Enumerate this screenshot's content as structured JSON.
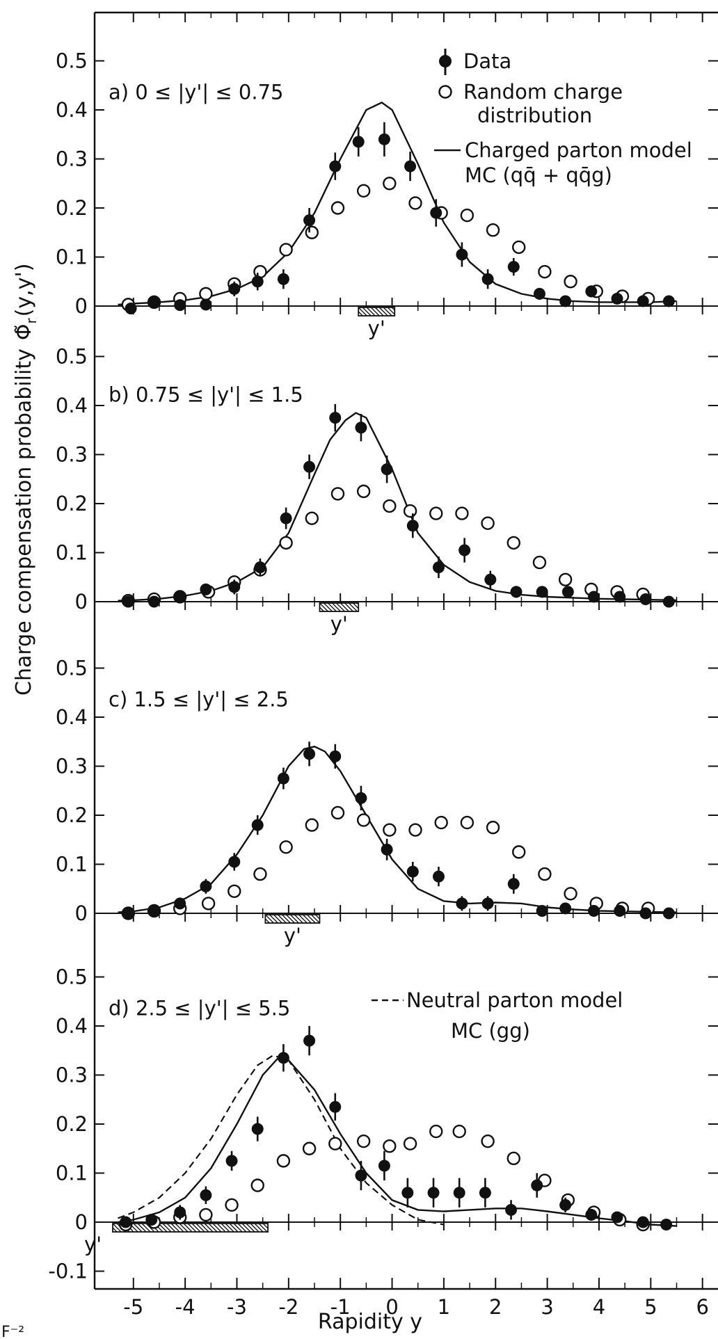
{
  "chart_data": {
    "type": "scatter",
    "xlabel": "Rapidity  y",
    "ylabel": "Charge compensation probability",
    "ylabel_symbol": "Φ̃",
    "ylabel_sub": "r",
    "ylabel_args": "(y,y')",
    "xlim": [
      -5.75,
      6.3
    ],
    "x_ticks": [
      -5,
      -4,
      -3,
      -2,
      -1,
      0,
      1,
      2,
      3,
      4,
      5,
      6
    ],
    "y_ticks": [
      "0",
      "0.1",
      "0.2",
      "0.3",
      "0.4",
      "0.5"
    ],
    "y_ticks_extra": [
      "-0.1"
    ],
    "yprime_marker": "y'",
    "fig_caption": "F⁻²",
    "legend": {
      "data": "Data",
      "random_1": "Random charge",
      "random_2": "distribution",
      "charged_1": "Charged parton model",
      "charged_2": "MC (qq̄ + qq̄g)",
      "neutral_1": "Neutral parton model",
      "neutral_2": "MC (gg)"
    },
    "panels": [
      {
        "label": "a)  0 ≤ |y'| ≤ 0.75",
        "ylim": [
          0,
          0.57
        ],
        "yprime_range": [
          -0.65,
          0.05
        ],
        "data": {
          "x": [
            -5.05,
            -4.6,
            -4.1,
            -3.6,
            -3.05,
            -2.6,
            -2.1,
            -1.6,
            -1.1,
            -0.65,
            -0.15,
            0.35,
            0.85,
            1.35,
            1.85,
            2.35,
            2.85,
            3.35,
            3.85,
            4.35,
            4.85,
            5.35
          ],
          "y": [
            -0.005,
            0.007,
            0.002,
            0.003,
            0.035,
            0.05,
            0.055,
            0.175,
            0.285,
            0.335,
            0.34,
            0.285,
            0.19,
            0.105,
            0.055,
            0.08,
            0.025,
            0.01,
            0.03,
            0.015,
            0.01,
            0.01
          ],
          "err": [
            0.008,
            0.008,
            0.008,
            0.008,
            0.015,
            0.018,
            0.02,
            0.025,
            0.028,
            0.03,
            0.035,
            0.03,
            0.028,
            0.025,
            0.02,
            0.018,
            0.012,
            0.01,
            0.012,
            0.01,
            0.008,
            0.008
          ]
        },
        "random": {
          "x": [
            -5.1,
            -4.6,
            -4.1,
            -3.6,
            -3.05,
            -2.55,
            -2.05,
            -1.55,
            -1.05,
            -0.55,
            -0.05,
            0.45,
            0.95,
            1.45,
            1.95,
            2.45,
            2.95,
            3.45,
            3.95,
            4.45,
            4.95
          ],
          "y": [
            0.003,
            0.008,
            0.015,
            0.025,
            0.045,
            0.07,
            0.115,
            0.15,
            0.2,
            0.235,
            0.25,
            0.21,
            0.19,
            0.185,
            0.155,
            0.12,
            0.07,
            0.05,
            0.03,
            0.02,
            0.015
          ]
        },
        "model": {
          "x": [
            -5.3,
            -5,
            -4.5,
            -4,
            -3.5,
            -3,
            -2.5,
            -2,
            -1.5,
            -1,
            -0.5,
            -0.2,
            0,
            0.5,
            1,
            1.5,
            2,
            2.5,
            3,
            3.5,
            4,
            4.5,
            5,
            5.5
          ],
          "y": [
            0.003,
            0.005,
            0.008,
            0.012,
            0.02,
            0.035,
            0.06,
            0.11,
            0.19,
            0.3,
            0.4,
            0.415,
            0.4,
            0.29,
            0.17,
            0.09,
            0.045,
            0.025,
            0.015,
            0.01,
            0.008,
            0.008,
            0.008,
            0.01
          ]
        }
      },
      {
        "label": "b)  0.75 ≤ |y'| ≤ 1.5",
        "ylim": [
          0,
          0.57
        ],
        "yprime_range": [
          -1.4,
          -0.65
        ],
        "data": {
          "x": [
            -5.1,
            -4.6,
            -4.1,
            -3.6,
            -3.05,
            -2.55,
            -2.05,
            -1.6,
            -1.1,
            -0.6,
            -0.1,
            0.4,
            0.9,
            1.4,
            1.9,
            2.4,
            2.9,
            3.4,
            3.9,
            4.4,
            4.9,
            5.35
          ],
          "y": [
            0,
            0,
            0.01,
            0.025,
            0.03,
            0.07,
            0.17,
            0.275,
            0.375,
            0.355,
            0.27,
            0.155,
            0.07,
            0.105,
            0.045,
            0.02,
            0.02,
            0.02,
            0.01,
            0.01,
            0.005,
            0
          ],
          "err": [
            0.008,
            0.008,
            0.01,
            0.012,
            0.015,
            0.018,
            0.022,
            0.025,
            0.028,
            0.028,
            0.028,
            0.025,
            0.022,
            0.025,
            0.018,
            0.012,
            0.01,
            0.01,
            0.008,
            0.008,
            0.008,
            0.008
          ]
        },
        "random": {
          "x": [
            -5.1,
            -4.6,
            -4.1,
            -3.55,
            -3.05,
            -2.55,
            -2.05,
            -1.55,
            -1.05,
            -0.55,
            -0.05,
            0.35,
            0.85,
            1.35,
            1.85,
            2.35,
            2.85,
            3.35,
            3.85,
            4.35,
            4.85
          ],
          "y": [
            0.002,
            0.005,
            0.01,
            0.02,
            0.04,
            0.065,
            0.12,
            0.17,
            0.22,
            0.225,
            0.195,
            0.185,
            0.18,
            0.18,
            0.16,
            0.12,
            0.08,
            0.045,
            0.025,
            0.02,
            0.015
          ]
        },
        "model": {
          "x": [
            -5.3,
            -5,
            -4.5,
            -4,
            -3.5,
            -3,
            -2.5,
            -2,
            -1.5,
            -1.2,
            -0.9,
            -0.7,
            -0.5,
            0,
            0.5,
            1,
            1.5,
            2,
            2.5,
            3,
            3.5,
            4,
            4.5,
            5,
            5.5
          ],
          "y": [
            0.002,
            0.003,
            0.006,
            0.012,
            0.022,
            0.04,
            0.07,
            0.14,
            0.26,
            0.33,
            0.37,
            0.385,
            0.375,
            0.27,
            0.14,
            0.075,
            0.04,
            0.022,
            0.014,
            0.01,
            0.008,
            0.006,
            0.005,
            0.004,
            0.003
          ]
        }
      },
      {
        "label": "c)  1.5 ≤ |y'| ≤ 2.5",
        "ylim": [
          0,
          0.57
        ],
        "yprime_range": [
          -2.45,
          -1.4
        ],
        "data": {
          "x": [
            -5.1,
            -4.6,
            -4.1,
            -3.6,
            -3.05,
            -2.6,
            -2.1,
            -1.6,
            -1.1,
            -0.6,
            -0.1,
            0.4,
            0.9,
            1.35,
            1.85,
            2.35,
            2.9,
            3.35,
            3.9,
            4.4,
            4.9,
            5.35
          ],
          "y": [
            0,
            0.005,
            0.02,
            0.055,
            0.105,
            0.18,
            0.275,
            0.325,
            0.32,
            0.235,
            0.13,
            0.085,
            0.075,
            0.02,
            0.02,
            0.06,
            0.005,
            0.01,
            0.005,
            0.005,
            0,
            0
          ],
          "err": [
            0.008,
            0.01,
            0.012,
            0.015,
            0.018,
            0.02,
            0.022,
            0.025,
            0.025,
            0.025,
            0.022,
            0.02,
            0.02,
            0.015,
            0.015,
            0.02,
            0.01,
            0.01,
            0.008,
            0.008,
            0.008,
            0.008
          ]
        },
        "random": {
          "x": [
            -5.1,
            -4.6,
            -4.1,
            -3.55,
            -3.05,
            -2.55,
            -2.05,
            -1.55,
            -1.05,
            -0.55,
            -0.05,
            0.45,
            0.95,
            1.45,
            1.95,
            2.45,
            2.95,
            3.45,
            3.95,
            4.45,
            4.95
          ],
          "y": [
            0,
            0.005,
            0.01,
            0.02,
            0.045,
            0.08,
            0.135,
            0.18,
            0.205,
            0.19,
            0.17,
            0.17,
            0.185,
            0.185,
            0.175,
            0.125,
            0.08,
            0.04,
            0.02,
            0.01,
            0.01
          ]
        },
        "model": {
          "x": [
            -5.3,
            -5,
            -4.5,
            -4,
            -3.5,
            -3,
            -2.5,
            -2,
            -1.7,
            -1.5,
            -1.3,
            -1,
            -0.5,
            0,
            0.5,
            1,
            1.5,
            2,
            2.5,
            3,
            3.5,
            4,
            4.5,
            5,
            5.5
          ],
          "y": [
            0.002,
            0.004,
            0.012,
            0.03,
            0.06,
            0.12,
            0.2,
            0.3,
            0.335,
            0.34,
            0.33,
            0.29,
            0.2,
            0.11,
            0.05,
            0.025,
            0.02,
            0.022,
            0.02,
            0.012,
            0.008,
            0.005,
            0.004,
            0.003,
            0.002
          ]
        }
      },
      {
        "label": "d)  2.5 ≤ |y'| ≤ 5.5",
        "ylim": [
          -0.1,
          0.57
        ],
        "yprime_range": [
          -5.4,
          -2.4
        ],
        "data": {
          "x": [
            -5.15,
            -4.65,
            -4.1,
            -3.6,
            -3.1,
            -2.6,
            -2.1,
            -1.6,
            -1.1,
            -0.6,
            -0.15,
            0.3,
            0.8,
            1.3,
            1.8,
            2.3,
            2.8,
            3.35,
            3.85,
            4.35,
            4.85,
            5.3
          ],
          "y": [
            0,
            0.005,
            0.02,
            0.055,
            0.125,
            0.19,
            0.335,
            0.37,
            0.235,
            0.095,
            0.115,
            0.06,
            0.06,
            0.06,
            0.06,
            0.025,
            0.075,
            0.035,
            0.015,
            0.01,
            0,
            -0.005
          ],
          "err": [
            0.008,
            0.01,
            0.015,
            0.018,
            0.02,
            0.025,
            0.028,
            0.03,
            0.028,
            0.03,
            0.03,
            0.03,
            0.03,
            0.03,
            0.03,
            0.02,
            0.025,
            0.015,
            0.012,
            0.01,
            0.008,
            0.008
          ]
        },
        "random": {
          "x": [
            -5.15,
            -4.6,
            -4.1,
            -3.6,
            -3.1,
            -2.6,
            -2.1,
            -1.6,
            -1.1,
            -0.55,
            -0.05,
            0.35,
            0.85,
            1.3,
            1.85,
            2.35,
            2.95,
            3.4,
            3.9,
            4.4,
            4.85
          ],
          "y": [
            -0.005,
            0,
            0.01,
            0.015,
            0.035,
            0.075,
            0.125,
            0.15,
            0.16,
            0.165,
            0.155,
            0.16,
            0.185,
            0.185,
            0.165,
            0.13,
            0.085,
            0.045,
            0.02,
            0.005,
            -0.005
          ]
        },
        "model": {
          "x": [
            -5.3,
            -5,
            -4.5,
            -4,
            -3.5,
            -3,
            -2.5,
            -2.2,
            -2,
            -1.5,
            -1,
            -0.5,
            0,
            0.5,
            1,
            1.5,
            2,
            2.5,
            3,
            3.5,
            4,
            4.5,
            5,
            5.5
          ],
          "y": [
            0,
            0.005,
            0.02,
            0.05,
            0.11,
            0.2,
            0.3,
            0.335,
            0.33,
            0.27,
            0.18,
            0.1,
            0.045,
            0.025,
            0.022,
            0.025,
            0.028,
            0.028,
            0.022,
            0.015,
            0.008,
            0.002,
            -0.005,
            -0.008
          ]
        },
        "neutral_model": {
          "x": [
            -5.3,
            -5,
            -4.5,
            -4,
            -3.5,
            -3,
            -2.6,
            -2.3,
            -2,
            -1.5,
            -1,
            -0.5,
            0,
            0.5,
            1
          ],
          "y": [
            0.008,
            0.02,
            0.05,
            0.1,
            0.17,
            0.26,
            0.32,
            0.34,
            0.33,
            0.25,
            0.15,
            0.08,
            0.035,
            0.005,
            -0.005
          ]
        }
      }
    ]
  }
}
